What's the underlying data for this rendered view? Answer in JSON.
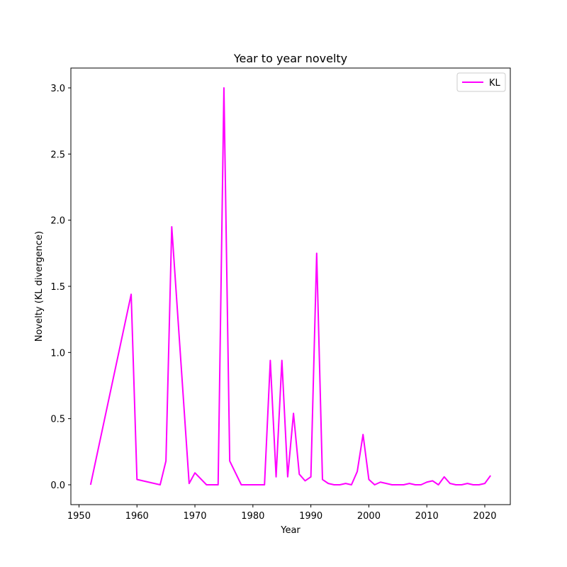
{
  "chart_data": {
    "type": "line",
    "title": "Year to year novelty",
    "xlabel": "Year",
    "ylabel": "Novelty (KL divergence)",
    "xlim": [
      1948.6,
      2024.4
    ],
    "ylim": [
      -0.15,
      3.15
    ],
    "xticks": [
      1950,
      1960,
      1970,
      1980,
      1990,
      2000,
      2010,
      2020
    ],
    "yticks": [
      0.0,
      0.5,
      1.0,
      1.5,
      2.0,
      2.5,
      3.0
    ],
    "ytick_labels": [
      "0.0",
      "0.5",
      "1.0",
      "1.5",
      "2.0",
      "2.5",
      "3.0"
    ],
    "grid": false,
    "legend_position": "upper right",
    "series": [
      {
        "name": "KL",
        "color": "#ff00ff",
        "x": [
          1952,
          1959,
          1960,
          1964,
          1965,
          1966,
          1969,
          1970,
          1972,
          1974,
          1975,
          1976,
          1978,
          1982,
          1983,
          1984,
          1985,
          1986,
          1987,
          1988,
          1989,
          1990,
          1991,
          1992,
          1993,
          1994,
          1995,
          1996,
          1997,
          1998,
          1999,
          2000,
          2001,
          2002,
          2003,
          2004,
          2005,
          2006,
          2007,
          2008,
          2009,
          2010,
          2011,
          2012,
          2013,
          2014,
          2015,
          2016,
          2017,
          2018,
          2019,
          2020,
          2021
        ],
        "y": [
          0.0,
          1.44,
          0.04,
          0.0,
          0.18,
          1.95,
          0.01,
          0.09,
          0.0,
          0.0,
          3.0,
          0.18,
          0.0,
          0.0,
          0.94,
          0.06,
          0.94,
          0.06,
          0.54,
          0.08,
          0.03,
          0.06,
          1.75,
          0.04,
          0.01,
          0.0,
          0.0,
          0.01,
          0.0,
          0.1,
          0.38,
          0.04,
          0.0,
          0.02,
          0.01,
          0.0,
          0.0,
          0.0,
          0.01,
          0.0,
          0.0,
          0.02,
          0.03,
          0.0,
          0.06,
          0.01,
          0.0,
          0.0,
          0.01,
          0.0,
          0.0,
          0.01,
          0.07
        ]
      }
    ]
  }
}
